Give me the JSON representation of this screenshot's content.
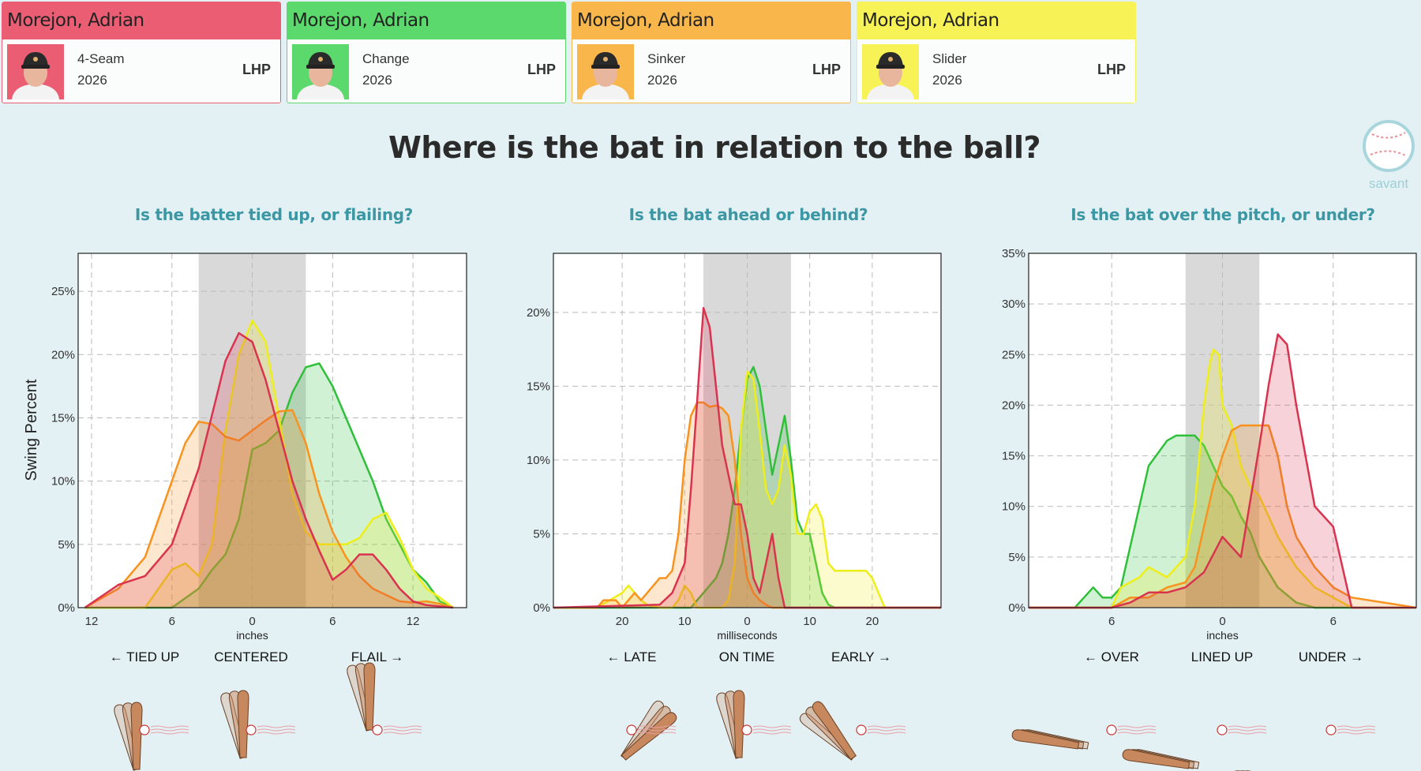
{
  "header": {
    "cards": [
      {
        "name": "Morejon, Adrian",
        "pitch": "4-Seam",
        "year": "2026",
        "hand": "LHP",
        "color": "#ea5d73"
      },
      {
        "name": "Morejon, Adrian",
        "pitch": "Change",
        "year": "2026",
        "hand": "LHP",
        "color": "#5cd96c"
      },
      {
        "name": "Morejon, Adrian",
        "pitch": "Sinker",
        "year": "2026",
        "hand": "LHP",
        "color": "#f8b64b"
      },
      {
        "name": "Morejon, Adrian",
        "pitch": "Slider",
        "year": "2026",
        "hand": "LHP",
        "color": "#f7f256"
      }
    ]
  },
  "title": "Where is the bat in relation to the ball?",
  "logo_text": "savant",
  "y_axis_label": "Swing Percent",
  "series_colors": {
    "4-Seam": "#d9344f",
    "Change": "#2fc03a",
    "Sinker": "#f7931e",
    "Slider": "#eeee1a"
  },
  "chart_data": [
    {
      "type": "area",
      "title": "Is the batter tied up, or flailing?",
      "xlabel": "inches",
      "x_ticks": [
        "12",
        "6",
        "0",
        "6",
        "12"
      ],
      "y_ticks": [
        "0%",
        "5%",
        "10%",
        "15%",
        "20%",
        "25%"
      ],
      "ylim": [
        0,
        28
      ],
      "xlim": [
        -13,
        16
      ],
      "shaded_region": [
        -4,
        4
      ],
      "directions": [
        "← TIED UP",
        "CENTERED",
        "FLAIL →"
      ],
      "series": [
        {
          "name": "4-Seam",
          "x": [
            -12.5,
            -10,
            -8,
            -6,
            -4,
            -2,
            -1,
            0,
            1,
            2,
            3,
            4,
            5,
            6,
            7,
            8,
            9,
            10,
            11,
            12,
            13,
            14,
            15
          ],
          "y": [
            0,
            1.8,
            2.5,
            5,
            11,
            19.5,
            21.7,
            21,
            18,
            14,
            10,
            7,
            4.5,
            2.2,
            3,
            4.2,
            4.2,
            3,
            1.5,
            0.5,
            0.2,
            0.1,
            0
          ]
        },
        {
          "name": "Change",
          "x": [
            -12.5,
            -8,
            -6,
            -4,
            -3,
            -2,
            -1,
            0,
            1,
            2,
            3,
            4,
            5,
            6,
            7,
            8,
            9,
            10,
            11,
            12,
            13,
            14,
            15
          ],
          "y": [
            0,
            0,
            0,
            1.5,
            3,
            4.2,
            7,
            12.5,
            13,
            14,
            17,
            19,
            19.3,
            17.5,
            15,
            12.5,
            10,
            7,
            5,
            3,
            2,
            0.5,
            0
          ]
        },
        {
          "name": "Sinker",
          "x": [
            -12.5,
            -10,
            -8,
            -6,
            -5,
            -4,
            -3,
            -2,
            -1,
            0,
            1,
            2,
            3,
            4,
            5,
            6,
            7,
            8,
            9,
            10,
            11,
            12,
            13,
            14,
            15
          ],
          "y": [
            0,
            1.5,
            4,
            10,
            13,
            14.7,
            14.5,
            13.5,
            13.2,
            14,
            14.8,
            15.5,
            15.6,
            13,
            9,
            6,
            4,
            2.5,
            1.5,
            1,
            0.5,
            0.4,
            0.5,
            0.3,
            0
          ]
        },
        {
          "name": "Slider",
          "x": [
            -12.5,
            -8,
            -7,
            -6,
            -5,
            -4,
            -3,
            -2,
            -1,
            0,
            1,
            2,
            3,
            4,
            5,
            6,
            7,
            8,
            9,
            10,
            11,
            12,
            13,
            14,
            15
          ],
          "y": [
            0,
            0,
            1.5,
            3,
            3.5,
            2.5,
            5,
            14,
            20,
            22.7,
            21,
            15,
            9,
            6,
            5,
            5,
            5,
            5.5,
            7,
            7.5,
            5.5,
            3,
            1.5,
            0.8,
            0
          ]
        }
      ]
    },
    {
      "type": "area",
      "title": "Is the bat ahead or behind?",
      "xlabel": "milliseconds",
      "x_ticks": [
        "20",
        "10",
        "0",
        "10",
        "20"
      ],
      "y_ticks": [
        "0%",
        "5%",
        "10%",
        "15%",
        "20%"
      ],
      "ylim": [
        0,
        24
      ],
      "xlim": [
        -31,
        31
      ],
      "shaded_region": [
        -7,
        7
      ],
      "directions": [
        "← LATE",
        "ON TIME",
        "EARLY →"
      ],
      "series": [
        {
          "name": "4-Seam",
          "x": [
            -31,
            -14,
            -12,
            -10,
            -9,
            -8,
            -7,
            -6,
            -5,
            -4,
            -3,
            -2,
            -1,
            0,
            1,
            2,
            3,
            4,
            5,
            6,
            31
          ],
          "y": [
            0,
            0.2,
            1,
            3,
            8,
            14,
            20.3,
            19,
            15,
            11,
            9,
            7,
            7,
            5,
            2,
            1,
            3,
            5,
            2,
            0,
            0
          ]
        },
        {
          "name": "Change",
          "x": [
            -31,
            -10,
            -9,
            -8,
            -7,
            -6,
            -5,
            -4,
            -3,
            -2,
            -1,
            0,
            1,
            2,
            3,
            4,
            5,
            6,
            7,
            8,
            9,
            10,
            11,
            12,
            13,
            14,
            31
          ],
          "y": [
            0,
            0,
            0,
            0.5,
            1,
            1.5,
            2,
            3,
            5,
            8,
            12,
            15.5,
            16.3,
            15,
            12,
            9,
            11,
            13,
            10,
            6,
            5,
            5,
            3,
            1,
            0.2,
            0,
            0
          ]
        },
        {
          "name": "Sinker",
          "x": [
            -31,
            -24,
            -23,
            -21,
            -20,
            -19,
            -18,
            -17,
            -16,
            -15,
            -14,
            -13,
            -12,
            -11,
            -10,
            -9,
            -8,
            -7,
            -6,
            -5,
            -4,
            -3,
            -2,
            -1,
            0,
            1,
            2,
            3,
            4,
            5,
            31
          ],
          "y": [
            0,
            0,
            0.5,
            0.5,
            0,
            0.5,
            1,
            0.5,
            1,
            1.5,
            2,
            2,
            2.5,
            5,
            10,
            13,
            13.9,
            13.9,
            13.6,
            13.7,
            13.5,
            13,
            10,
            5,
            2,
            1,
            0.5,
            0.2,
            0,
            0,
            0
          ]
        },
        {
          "name": "Slider",
          "x": [
            -31,
            -24,
            -22,
            -20,
            -19,
            -18,
            -17,
            -16,
            -14,
            -12,
            -11,
            -10,
            -9,
            -8,
            -7,
            -6,
            -5,
            -4,
            -3,
            -2,
            -1,
            0,
            1,
            2,
            3,
            4,
            5,
            6,
            7,
            8,
            9,
            10,
            11,
            12,
            13,
            14,
            15,
            16,
            17,
            18,
            19,
            20,
            21,
            22,
            31
          ],
          "y": [
            0,
            0,
            0.5,
            1,
            1.5,
            1,
            0.5,
            0.2,
            0,
            0,
            0.5,
            1.5,
            1,
            0,
            0,
            0,
            0,
            0,
            0.5,
            3,
            12,
            16,
            15.5,
            12,
            8,
            7,
            8,
            11,
            9,
            5,
            5,
            6.5,
            7,
            6,
            3,
            2.5,
            2.5,
            2.5,
            2.5,
            2.5,
            2.5,
            2,
            1,
            0,
            0
          ]
        }
      ]
    },
    {
      "type": "area",
      "title": "Is the bat over the pitch, or under?",
      "xlabel": "inches",
      "x_ticks": [
        "6",
        "0",
        "6"
      ],
      "y_ticks": [
        "0%",
        "5%",
        "10%",
        "15%",
        "20%",
        "25%",
        "30%",
        "35%"
      ],
      "ylim": [
        0,
        35
      ],
      "xlim": [
        -10.5,
        10.5
      ],
      "shaded_region": [
        -2,
        2
      ],
      "directions": [
        "← OVER",
        "LINED UP",
        "UNDER →"
      ],
      "series": [
        {
          "name": "4-Seam",
          "x": [
            -10.5,
            -7,
            -6,
            -5,
            -4,
            -3,
            -2,
            -1,
            0,
            1,
            2,
            2.5,
            3,
            3.5,
            4,
            5,
            6,
            7,
            10.5
          ],
          "y": [
            0,
            0,
            0,
            0.5,
            1.5,
            1.5,
            2,
            3.5,
            7,
            5,
            16,
            22,
            27,
            26,
            20,
            10,
            8,
            0,
            0
          ]
        },
        {
          "name": "Change",
          "x": [
            -10.5,
            -8,
            -7.5,
            -7,
            -6.5,
            -6,
            -5.5,
            -5,
            -4,
            -3,
            -2.5,
            -2,
            -1.5,
            -1,
            -0.5,
            0,
            0.5,
            1,
            1.5,
            2,
            3,
            4,
            5,
            6,
            7,
            10.5
          ],
          "y": [
            0,
            0,
            1,
            2,
            1,
            1,
            2,
            6,
            14,
            16.5,
            17,
            17,
            17,
            16,
            14,
            12,
            11,
            9,
            7.5,
            5,
            2,
            0.5,
            0,
            0,
            0,
            0
          ]
        },
        {
          "name": "Sinker",
          "x": [
            -10.5,
            -6,
            -5.5,
            -5,
            -4.5,
            -4,
            -3.5,
            -3,
            -2,
            -1.5,
            -1,
            -0.5,
            0,
            0.5,
            1,
            1.5,
            2,
            2.5,
            3,
            3.5,
            4,
            5,
            6,
            7,
            10.5
          ],
          "y": [
            0,
            0,
            0.5,
            1,
            1,
            1,
            1.5,
            2,
            2.5,
            4,
            8,
            12,
            15,
            17.5,
            18,
            18,
            18,
            18,
            15,
            10,
            7,
            4,
            2,
            1,
            0
          ]
        },
        {
          "name": "Slider",
          "x": [
            -10.5,
            -6,
            -5.5,
            -5,
            -4.5,
            -4,
            -3.5,
            -3,
            -2,
            -1.5,
            -1,
            -0.7,
            -0.5,
            -0.2,
            0,
            0.5,
            1,
            1.5,
            2,
            2.5,
            3,
            4,
            5,
            6,
            7,
            10.5
          ],
          "y": [
            0,
            0,
            2,
            2.5,
            3,
            4,
            3.5,
            3,
            5,
            10,
            20,
            24,
            25.5,
            25,
            20,
            18,
            14,
            12,
            11,
            9,
            7,
            4,
            2,
            1,
            0,
            0
          ]
        }
      ]
    }
  ]
}
